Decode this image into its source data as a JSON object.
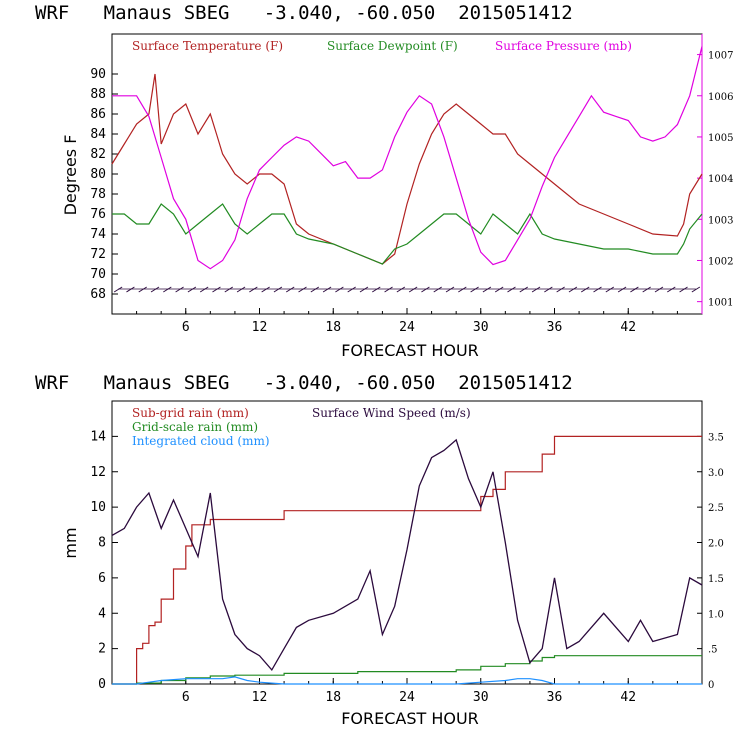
{
  "chart_data": [
    {
      "type": "line",
      "title": "WRF   Manaus SBEG   -3.040, -60.050  2015051412",
      "xlabel": "FORECAST HOUR",
      "ylabel": "Degrees F",
      "xlim": [
        0,
        48
      ],
      "ylim": [
        66,
        94
      ],
      "y2lim": [
        1000.7,
        1007.5
      ],
      "x_ticks": [
        "6",
        "12",
        "18",
        "24",
        "30",
        "36",
        "42"
      ],
      "y_ticks": [
        "68",
        "70",
        "72",
        "74",
        "76",
        "78",
        "80",
        "82",
        "84",
        "86",
        "88",
        "90"
      ],
      "y2_ticks": [
        "1001",
        "1002",
        "1003",
        "1004",
        "1005",
        "1006",
        "1007"
      ],
      "legend_placement": "top",
      "colors": {
        "temperature": "#b22222",
        "dewpoint": "#228b22",
        "pressure": "#e000e0",
        "wind_barbs": "#2b0a3d"
      },
      "series": [
        {
          "name": "Surface Temperature (F)",
          "axis": "left",
          "x": [
            0,
            1,
            2,
            3,
            3.5,
            4,
            5,
            6,
            7,
            8,
            8.5,
            9,
            10,
            11,
            12,
            13,
            14,
            15,
            16,
            18,
            20,
            22,
            23,
            24,
            25,
            26,
            27,
            28,
            29,
            30,
            31,
            32,
            33,
            34,
            35,
            36,
            38,
            40,
            42,
            44,
            46,
            46.5,
            47,
            48
          ],
          "y": [
            81,
            83,
            85,
            86,
            90,
            83,
            86,
            87,
            84,
            86,
            84,
            82,
            80,
            79,
            80,
            80,
            79,
            75,
            74,
            73,
            72,
            71,
            72,
            77,
            81,
            84,
            86,
            87,
            86,
            85,
            84,
            84,
            82,
            81,
            80,
            79,
            77,
            76,
            75,
            74,
            73.8,
            75,
            78,
            80
          ]
        },
        {
          "name": "Surface Dewpoint (F)",
          "axis": "left",
          "x": [
            0,
            1,
            2,
            3,
            4,
            5,
            6,
            7,
            8,
            9,
            10,
            11,
            12,
            13,
            14,
            15,
            16,
            18,
            20,
            22,
            23,
            24,
            25,
            26,
            27,
            28,
            29,
            30,
            31,
            32,
            33,
            34,
            35,
            36,
            38,
            40,
            42,
            44,
            46,
            46.5,
            47,
            48
          ],
          "y": [
            76,
            76,
            75,
            75,
            77,
            76,
            74,
            75,
            76,
            77,
            75,
            74,
            75,
            76,
            76,
            74,
            73.5,
            73,
            72,
            71,
            72.5,
            73,
            74,
            75,
            76,
            76,
            75,
            74,
            76,
            75,
            74,
            76,
            74,
            73.5,
            73,
            72.5,
            72.5,
            72,
            72,
            73,
            74.5,
            76
          ]
        },
        {
          "name": "Surface Pressure (mb)",
          "axis": "right",
          "x": [
            0,
            1,
            2,
            3,
            4,
            5,
            6,
            7,
            8,
            9,
            10,
            11,
            12,
            13,
            14,
            15,
            16,
            17,
            18,
            19,
            20,
            21,
            22,
            23,
            24,
            25,
            26,
            27,
            28,
            29,
            30,
            31,
            32,
            33,
            34,
            35,
            36,
            37,
            38,
            39,
            40,
            41,
            42,
            43,
            44,
            45,
            46,
            47,
            48
          ],
          "y": [
            1006,
            1006,
            1006,
            1005.5,
            1004.5,
            1003.5,
            1003,
            1002,
            1001.8,
            1002,
            1002.5,
            1003.5,
            1004.2,
            1004.5,
            1004.8,
            1005,
            1004.9,
            1004.6,
            1004.3,
            1004.4,
            1004,
            1004,
            1004.2,
            1005,
            1005.6,
            1006,
            1005.8,
            1005,
            1004,
            1003,
            1002.2,
            1001.9,
            1002,
            1002.5,
            1003,
            1003.8,
            1004.5,
            1005,
            1005.5,
            1006,
            1005.6,
            1005.5,
            1005.4,
            1005,
            1004.9,
            1005,
            1005.3,
            1006,
            1007.2
          ]
        }
      ]
    },
    {
      "type": "line",
      "title": "WRF   Manaus SBEG   -3.040, -60.050  2015051412",
      "xlabel": "FORECAST HOUR",
      "ylabel": "mm",
      "xlim": [
        0,
        48
      ],
      "ylim": [
        0,
        16
      ],
      "y2lim": [
        0,
        4
      ],
      "x_ticks": [
        "6",
        "12",
        "18",
        "24",
        "30",
        "36",
        "42"
      ],
      "y_ticks": [
        "0",
        "2",
        "4",
        "6",
        "8",
        "10",
        "12",
        "14"
      ],
      "y2_ticks": [
        "0",
        ".5",
        "1.0",
        "1.5",
        "2.0",
        "2.5",
        "3.0",
        "3.5"
      ],
      "legend_placement": "top-left",
      "colors": {
        "subgrid": "#b22222",
        "gridscale": "#228b22",
        "cloud": "#1e90ff",
        "wind": "#2b0a3d"
      },
      "series": [
        {
          "name": "Sub-grid rain (mm)",
          "axis": "left",
          "step": true,
          "x": [
            0,
            1.5,
            2,
            2.5,
            3,
            3.5,
            4,
            5,
            6,
            6.5,
            8,
            10,
            12,
            14,
            18,
            24,
            28,
            30,
            31,
            32,
            34,
            35,
            36,
            48
          ],
          "y": [
            0,
            0,
            2,
            2.3,
            3.3,
            3.5,
            4.8,
            6.5,
            7.8,
            9,
            9.3,
            9.3,
            9.3,
            9.8,
            9.8,
            9.8,
            9.8,
            10.6,
            11,
            12,
            12,
            13,
            14,
            14
          ]
        },
        {
          "name": "Grid-scale rain (mm)",
          "axis": "left",
          "step": true,
          "x": [
            0,
            2,
            4,
            6,
            8,
            10,
            12,
            14,
            20,
            24,
            28,
            30,
            32,
            34,
            35,
            36,
            48
          ],
          "y": [
            0,
            0.05,
            0.2,
            0.35,
            0.45,
            0.5,
            0.5,
            0.6,
            0.7,
            0.7,
            0.8,
            1,
            1.15,
            1.3,
            1.5,
            1.6,
            1.6
          ]
        },
        {
          "name": "Integrated cloud (mm)",
          "axis": "left",
          "x": [
            0,
            2,
            3,
            4,
            5,
            6,
            7,
            8,
            9,
            10,
            11,
            12,
            13,
            14,
            18,
            24,
            28,
            30,
            32,
            33,
            34,
            35,
            36,
            48
          ],
          "y": [
            0,
            0,
            0.1,
            0.2,
            0.25,
            0.3,
            0.3,
            0.3,
            0.3,
            0.4,
            0.2,
            0.1,
            0.05,
            0,
            0,
            0,
            0,
            0.1,
            0.2,
            0.3,
            0.3,
            0.2,
            0,
            0
          ]
        },
        {
          "name": "Surface Wind Speed (m/s)",
          "axis": "right",
          "x": [
            0,
            1,
            2,
            3,
            4,
            5,
            6,
            7,
            8,
            9,
            10,
            11,
            12,
            13,
            14,
            15,
            16,
            18,
            20,
            21,
            22,
            23,
            24,
            25,
            26,
            27,
            28,
            29,
            30,
            31,
            32,
            33,
            34,
            35,
            36,
            37,
            38,
            40,
            42,
            43,
            44,
            46,
            47,
            48
          ],
          "y": [
            2.1,
            2.2,
            2.5,
            2.7,
            2.2,
            2.6,
            2.2,
            1.8,
            2.7,
            1.2,
            0.7,
            0.5,
            0.4,
            0.2,
            0.5,
            0.8,
            0.9,
            1.0,
            1.2,
            1.6,
            0.7,
            1.1,
            1.9,
            2.8,
            3.2,
            3.3,
            3.45,
            2.9,
            2.5,
            3.0,
            2.0,
            0.9,
            0.3,
            0.5,
            1.5,
            0.5,
            0.6,
            1.0,
            0.6,
            0.9,
            0.6,
            0.7,
            1.5,
            1.4
          ]
        }
      ]
    }
  ]
}
